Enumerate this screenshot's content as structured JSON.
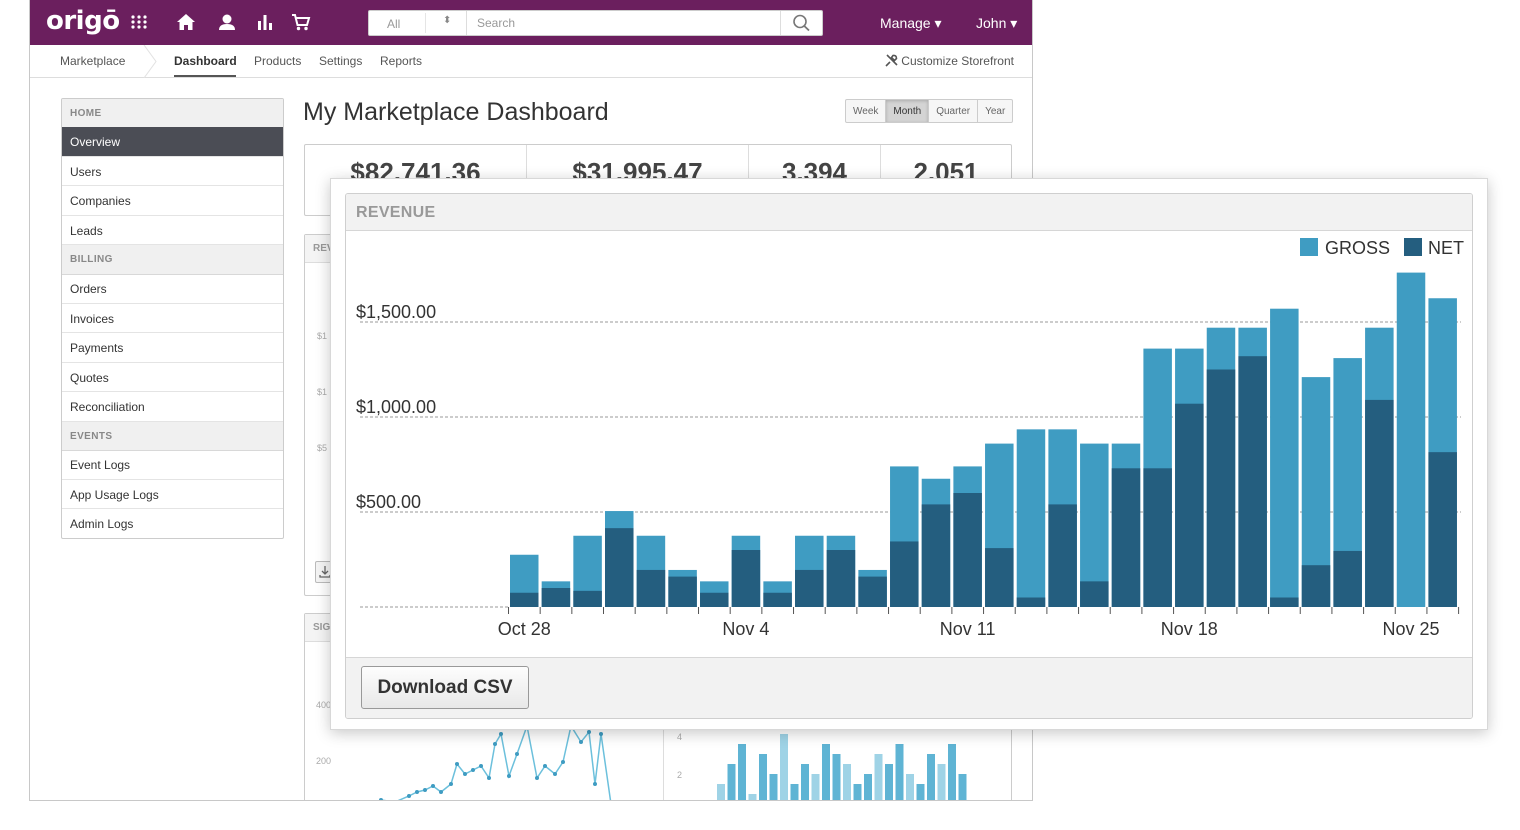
{
  "topbar": {
    "logo": "origō",
    "search": {
      "category": "All",
      "placeholder": "Search"
    },
    "manage_label": "Manage ▾",
    "user_label": "John ▾"
  },
  "subnav": {
    "marketplace": "Marketplace",
    "tabs": [
      "Dashboard",
      "Products",
      "Settings",
      "Reports"
    ],
    "customize": "Customize Storefront"
  },
  "sidebar": {
    "home_header": "HOME",
    "home_items": [
      "Overview",
      "Users",
      "Companies",
      "Leads"
    ],
    "billing_header": "BILLING",
    "billing_items": [
      "Orders",
      "Invoices",
      "Payments",
      "Quotes",
      "Reconciliation"
    ],
    "events_header": "EVENTS",
    "events_items": [
      "Event Logs",
      "App Usage Logs",
      "Admin Logs"
    ]
  },
  "main": {
    "title": "My Marketplace Dashboard",
    "periods": [
      "Week",
      "Month",
      "Quarter",
      "Year"
    ],
    "selected_period": "Month",
    "stats": [
      "$82,741.36",
      "$31,995.47",
      "3,394",
      "2,051"
    ],
    "bg_panel_1_header": "REV",
    "bg_panel_1_ticks": [
      "$1",
      "$1",
      "$5"
    ],
    "bg_panel_2_header": "SIG",
    "bg_panel_2_ticks": [
      "400",
      "200"
    ],
    "bg_panel_3_ticks": [
      "4",
      "2"
    ]
  },
  "revenue_panel": {
    "title": "REVENUE",
    "download_label": "Download CSV"
  },
  "colors": {
    "gross": "#3f9cc2",
    "net": "#245e7f",
    "brand": "#6b1f5e"
  },
  "chart_data": {
    "type": "bar",
    "stacked": "overlay",
    "title": "REVENUE",
    "legend": {
      "position": "top-right",
      "entries": [
        "GROSS",
        "NET"
      ]
    },
    "y_ticks": [
      "$500.00",
      "$1,000.00",
      "$1,500.00"
    ],
    "ylim": [
      0,
      1760
    ],
    "grid": "dashed horizontal",
    "x_tick_labels": [
      "Oct 28",
      "Nov 4",
      "Nov 11",
      "Nov 18",
      "Nov 25"
    ],
    "x_tick_label_indices": [
      0,
      7,
      14,
      21,
      28
    ],
    "series": [
      {
        "name": "GROSS",
        "values": [
          275,
          135,
          375,
          505,
          375,
          195,
          135,
          375,
          135,
          375,
          375,
          195,
          740,
          675,
          740,
          860,
          935,
          935,
          860,
          860,
          1360,
          1360,
          1470,
          1470,
          1570,
          1210,
          1310,
          1470,
          1760,
          1625
        ]
      },
      {
        "name": "NET",
        "values": [
          75,
          100,
          85,
          415,
          195,
          160,
          75,
          300,
          75,
          195,
          300,
          160,
          345,
          540,
          600,
          310,
          50,
          540,
          135,
          730,
          730,
          1070,
          1250,
          1320,
          50,
          220,
          295,
          1090,
          0,
          815
        ]
      }
    ]
  }
}
